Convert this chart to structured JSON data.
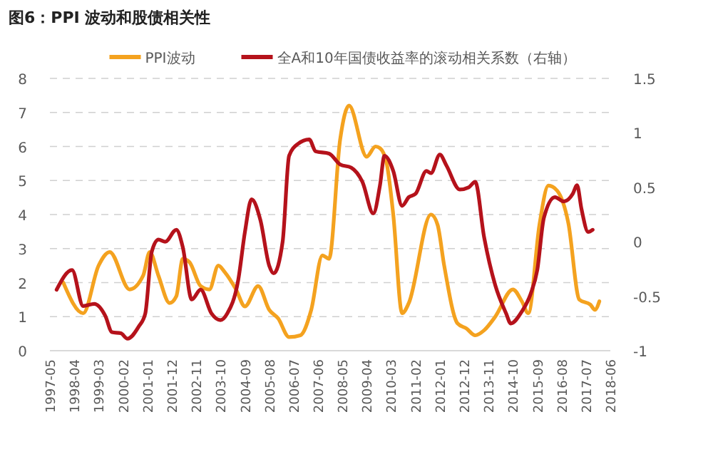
{
  "chart_data": {
    "type": "line",
    "title": "图6：PPI 波动和股债相关性",
    "legend": "top",
    "grid": "y",
    "line_style": "solid",
    "marker": "none",
    "xlim": [
      "1997-05",
      "2018-06"
    ],
    "xticks": [
      "1997-05",
      "1998-04",
      "1999-03",
      "2000-02",
      "2001-01",
      "2001-12",
      "2002-11",
      "2003-10",
      "2004-09",
      "2005-08",
      "2006-07",
      "2007-06",
      "2008-05",
      "2009-04",
      "2010-03",
      "2011-02",
      "2012-01",
      "2012-12",
      "2013-11",
      "2014-10",
      "2015-09",
      "2016-08",
      "2017-07",
      "2018-06"
    ],
    "ylim": [
      0,
      8
    ],
    "yticks": [
      0,
      1,
      2,
      3,
      4,
      5,
      6,
      7,
      8
    ],
    "y2lim": [
      -1,
      1.5
    ],
    "y2ticks": [
      -1,
      -0.5,
      0,
      0.5,
      1,
      1.5
    ],
    "series": [
      {
        "name": "PPI波动",
        "color": "#f4a21f",
        "x": [
          "1997-11",
          "1998-08",
          "1999-03",
          "1999-08",
          "2000-05",
          "2000-11",
          "2001-02",
          "2001-06",
          "2001-11",
          "2002-02",
          "2002-05",
          "2002-08",
          "2003-01",
          "2003-05",
          "2003-09",
          "2003-12",
          "2004-05",
          "2004-09",
          "2005-03",
          "2005-08",
          "2005-12",
          "2006-05",
          "2006-10",
          "2007-03",
          "2007-08",
          "2007-11",
          "2008-04",
          "2008-08",
          "2009-04",
          "2009-08",
          "2009-10",
          "2010-01",
          "2010-04",
          "2010-08",
          "2010-11",
          "2011-09",
          "2011-12",
          "2012-03",
          "2012-09",
          "2013-01",
          "2013-05",
          "2013-09",
          "2014-02",
          "2014-10",
          "2015-02",
          "2015-05",
          "2015-10",
          "2016-02",
          "2016-06",
          "2016-11",
          "2017-04",
          "2017-09",
          "2017-11",
          "2018-01"
        ],
        "values": [
          2.0,
          1.1,
          2.5,
          2.9,
          1.8,
          2.2,
          2.9,
          2.2,
          1.4,
          1.6,
          2.7,
          2.6,
          1.9,
          1.8,
          2.5,
          2.3,
          1.8,
          1.3,
          1.9,
          1.2,
          0.95,
          0.4,
          0.45,
          1.2,
          2.8,
          2.7,
          6.2,
          7.2,
          5.7,
          6.0,
          5.95,
          5.5,
          4.0,
          1.1,
          1.4,
          4.0,
          3.7,
          2.5,
          0.8,
          0.65,
          0.45,
          0.6,
          1.0,
          1.8,
          1.45,
          1.1,
          3.7,
          4.85,
          4.7,
          3.75,
          1.5,
          1.35,
          1.2,
          1.45
        ]
      },
      {
        "name": "全A和10年国债收益率的滚动相关系数（右轴）",
        "color": "#b5121b",
        "axis": "y2",
        "x": [
          "1997-08",
          "1998-03",
          "1998-08",
          "1999-01",
          "1999-06",
          "1999-09",
          "2000-01",
          "2000-04",
          "2000-09",
          "2000-12",
          "2001-03",
          "2001-06",
          "2001-09",
          "2002-02",
          "2002-05",
          "2002-09",
          "2003-01",
          "2003-06",
          "2003-10",
          "2004-01",
          "2004-06",
          "2004-09",
          "2004-12",
          "2005-04",
          "2005-08",
          "2005-10",
          "2006-02",
          "2006-05",
          "2006-09",
          "2007-02",
          "2007-05",
          "2007-11",
          "2008-04",
          "2008-09",
          "2009-02",
          "2009-07",
          "2009-10",
          "2009-12",
          "2010-04",
          "2010-08",
          "2010-11",
          "2011-02",
          "2011-07",
          "2011-09",
          "2012-01",
          "2012-04",
          "2012-10",
          "2013-02",
          "2013-05",
          "2013-09",
          "2014-02",
          "2014-07",
          "2014-09",
          "2015-02",
          "2015-06",
          "2015-09",
          "2015-12",
          "2016-05",
          "2016-09",
          "2017-01",
          "2017-03",
          "2017-05",
          "2017-08",
          "2017-10"
        ],
        "values": [
          -0.44,
          -0.26,
          -0.59,
          -0.57,
          -0.68,
          -0.83,
          -0.84,
          -0.89,
          -0.78,
          -0.66,
          -0.09,
          0.02,
          0.0,
          0.11,
          -0.05,
          -0.53,
          -0.44,
          -0.66,
          -0.72,
          -0.66,
          -0.35,
          0.09,
          0.39,
          0.2,
          -0.22,
          -0.29,
          0.0,
          0.79,
          0.9,
          0.94,
          0.83,
          0.81,
          0.71,
          0.68,
          0.55,
          0.26,
          0.52,
          0.79,
          0.65,
          0.33,
          0.41,
          0.44,
          0.65,
          0.63,
          0.8,
          0.7,
          0.48,
          0.5,
          0.55,
          0.04,
          -0.4,
          -0.66,
          -0.75,
          -0.64,
          -0.48,
          -0.26,
          0.22,
          0.41,
          0.37,
          0.44,
          0.52,
          0.3,
          0.09,
          0.11
        ]
      }
    ]
  }
}
